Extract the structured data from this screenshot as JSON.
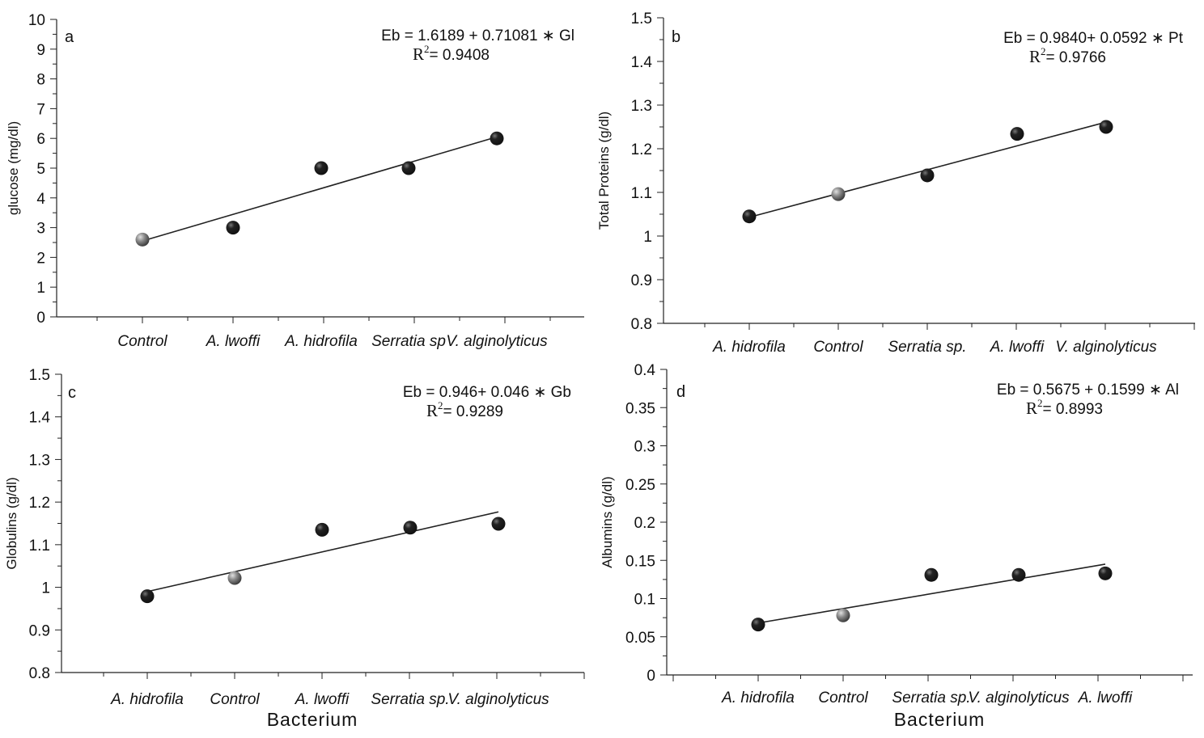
{
  "colors": {
    "point_dark": "#111111",
    "point_highlight": "#8a8a8a",
    "axis": "#222222"
  },
  "chart_data": [
    {
      "type": "scatter",
      "panel": "a",
      "ylabel": "glucose (mg/dl)",
      "xlabel": "",
      "ylim": [
        0,
        10
      ],
      "y_ticks": [
        "0",
        "1",
        "2",
        "3",
        "4",
        "5",
        "6",
        "7",
        "8",
        "9",
        "10"
      ],
      "categories": [
        "Control",
        "A. lwoffi",
        "A. hidrofila",
        "Serratia sp",
        "V. alginolyticus"
      ],
      "values": [
        2.6,
        3.0,
        5.0,
        5.0,
        6.0
      ],
      "highlight_category": "Control",
      "fit_line": [
        2.55,
        6.05
      ],
      "equation": "Eb = 1.6189 + 0.71081 ∗ Gl",
      "r2_label": "R",
      "r2_sup": "2",
      "r2_value": "=   0.9408",
      "grid": false
    },
    {
      "type": "scatter",
      "panel": "b",
      "ylabel": "Total Proteins  (g/dl)",
      "xlabel": "",
      "ylim": [
        0.8,
        1.5
      ],
      "y_ticks": [
        "0.8",
        "0.9",
        "1",
        "1.1",
        "1.2",
        "1.3",
        "1.4",
        "1.5"
      ],
      "categories": [
        "A. hidrofila",
        "Control",
        "Serratia  sp.",
        "A. lwoffi",
        "V. alginolyticus"
      ],
      "values": [
        1.045,
        1.096,
        1.139,
        1.234,
        1.25
      ],
      "highlight_category": "Control",
      "fit_line": [
        1.043,
        1.261
      ],
      "equation": "Eb = 0.9840+ 0.0592 ∗ Pt",
      "r2_label": "R",
      "r2_sup": "2",
      "r2_value": "= 0.9766",
      "grid": false
    },
    {
      "type": "scatter",
      "panel": "c",
      "ylabel": "Globulins (g/dl)",
      "xlabel": "Bacterium",
      "ylim": [
        0.8,
        1.5
      ],
      "y_ticks": [
        "0.8",
        "0.9",
        "1",
        "1.1",
        "1.2",
        "1.3",
        "1.4",
        "1.5"
      ],
      "categories": [
        "A. hidrofila",
        "Control",
        "A. lwoffi",
        "Serratia  sp.",
        "V. alginolyticus"
      ],
      "values": [
        0.979,
        1.022,
        1.135,
        1.14,
        1.149
      ],
      "highlight_category": "Control",
      "fit_line": [
        0.99,
        1.177
      ],
      "equation": "Eb = 0.946+ 0.046 ∗ Gb",
      "r2_label": "R",
      "r2_sup": "2",
      "r2_value": "= 0.9289",
      "grid": false
    },
    {
      "type": "scatter",
      "panel": "d",
      "ylabel": "Albumins  (g/dl)",
      "xlabel": "Bacterium",
      "ylim": [
        0,
        0.4
      ],
      "y_ticks": [
        "0",
        "0.05",
        "0.1",
        "0.15",
        "0.2",
        "0.25",
        "0.3",
        "0.35",
        "0.4"
      ],
      "categories": [
        "A. hidrofila",
        "Control",
        "Serratia sp.",
        "V. alginolyticus",
        "A. lwoffi"
      ],
      "values": [
        0.066,
        0.078,
        0.131,
        0.131,
        0.133
      ],
      "highlight_category": "Control",
      "fit_line": [
        0.068,
        0.145
      ],
      "equation": "Eb = 0.5675 + 0.1599 ∗ Al",
      "r2_label": "R",
      "r2_sup": "2",
      "r2_value": "= 0.8993",
      "grid": false
    }
  ]
}
